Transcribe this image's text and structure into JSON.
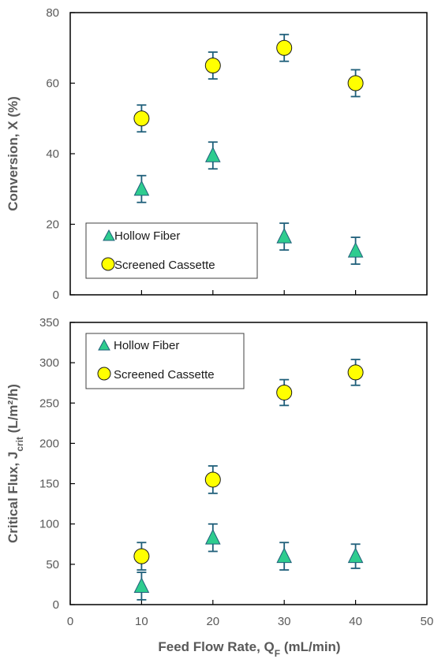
{
  "colors": {
    "triangle": "#2ecc8f",
    "circle": "#ffff00",
    "errorbar": "#1f5f7a",
    "axis": "#000000",
    "label": "#595959"
  },
  "chart_data": [
    {
      "type": "scatter",
      "title": "",
      "ylabel": "Conversion, X (%)",
      "xlabel": "",
      "xlim": [
        0,
        50
      ],
      "ylim": [
        0,
        80
      ],
      "xticks": [
        0,
        10,
        20,
        30,
        40,
        50
      ],
      "yticks": [
        0,
        20,
        40,
        60,
        80
      ],
      "ytick_labels": [
        "0",
        "20",
        "40",
        "60",
        "80"
      ],
      "grid": false,
      "legend": "bottom-left",
      "series": [
        {
          "name": "Hollow Fiber",
          "marker": "triangle",
          "x": [
            10,
            20,
            30,
            40
          ],
          "y": [
            30,
            39.5,
            16.5,
            12.5
          ],
          "err": [
            3.8,
            3.8,
            3.8,
            3.8
          ]
        },
        {
          "name": "Screened Cassette",
          "marker": "circle",
          "x": [
            10,
            20,
            30,
            40
          ],
          "y": [
            50,
            65,
            70,
            60
          ],
          "err": [
            3.8,
            3.8,
            3.8,
            3.8
          ]
        }
      ]
    },
    {
      "type": "scatter",
      "title": "",
      "ylabel_main": "Critical Flux, J",
      "ylabel_sub": "crit",
      "ylabel_unit": " (L/m²/h)",
      "xlabel_main": "Feed Flow Rate, Q",
      "xlabel_sub": "F",
      "xlabel_unit": " (mL/min)",
      "xlim": [
        0,
        50
      ],
      "ylim": [
        0,
        350
      ],
      "xticks": [
        0,
        10,
        20,
        30,
        40,
        50
      ],
      "xtick_labels": [
        "0",
        "10",
        "20",
        "30",
        "40",
        "50"
      ],
      "yticks": [
        0,
        50,
        100,
        150,
        200,
        250,
        300,
        350
      ],
      "ytick_labels": [
        "0",
        "50",
        "100",
        "150",
        "200",
        "250",
        "300",
        "350"
      ],
      "grid": false,
      "legend": "top-left",
      "series": [
        {
          "name": "Hollow Fiber",
          "marker": "triangle",
          "x": [
            10,
            20,
            30,
            40
          ],
          "y": [
            23,
            83,
            60,
            60
          ],
          "err": [
            17,
            17,
            17,
            15
          ]
        },
        {
          "name": "Screened Cassette",
          "marker": "circle",
          "x": [
            10,
            20,
            30,
            40
          ],
          "y": [
            60,
            155,
            263,
            288
          ],
          "err": [
            17,
            17,
            16,
            16
          ]
        }
      ]
    }
  ]
}
